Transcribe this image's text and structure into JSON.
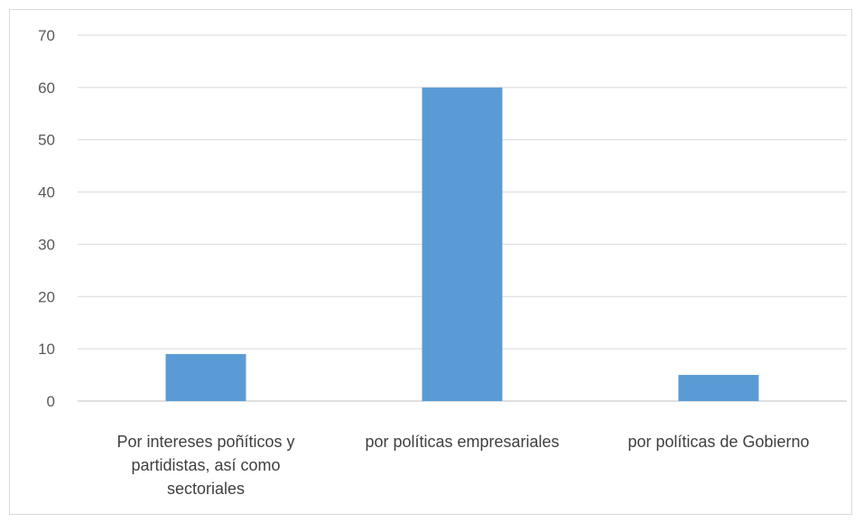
{
  "chart_data": {
    "type": "bar",
    "categories": [
      "Por intereses poñíticos y partidistas, así como sectoriales",
      "por políticas empresariales",
      "por políticas de Gobierno"
    ],
    "category_lines": [
      [
        "Por intereses poñíticos y",
        "partidistas, así como",
        "sectoriales"
      ],
      [
        "por políticas empresariales"
      ],
      [
        "por políticas de Gobierno"
      ]
    ],
    "values": [
      9,
      60,
      5
    ],
    "ylim": [
      0,
      70
    ],
    "yticks": [
      0,
      10,
      20,
      30,
      40,
      50,
      60,
      70
    ],
    "grid": true,
    "legend": "none",
    "colors": {
      "bar": "#5b9bd5",
      "grid": "#d9d9d9",
      "axis": "#bfbfbf"
    }
  }
}
